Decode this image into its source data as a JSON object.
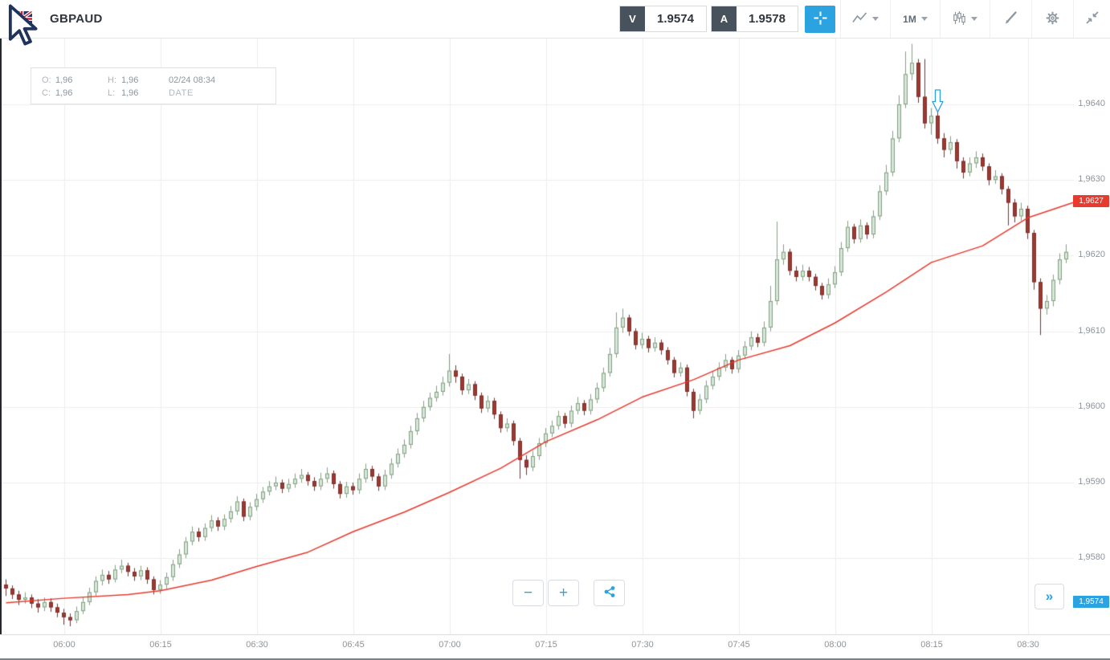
{
  "toolbar": {
    "symbol": "GBPAUD",
    "sell_label": "V",
    "sell_price": "1.9574",
    "buy_label": "A",
    "buy_price": "1.9578",
    "interval": "1M"
  },
  "info_box": {
    "open_label": "O:",
    "open_value": "1,96",
    "high_label": "H:",
    "high_value": "1,96",
    "close_label": "C:",
    "close_value": "1,96",
    "low_label": "L:",
    "low_value": "1,96",
    "datetime": "02/24 08:34",
    "date_caption": "DATE"
  },
  "controls": {
    "zoom_out": "−",
    "zoom_in": "+",
    "expand": "»"
  },
  "chart_data": {
    "type": "candlestick",
    "symbol": "GBPAUD",
    "interval": "1m",
    "start_time": "05:51",
    "x_ticks": [
      "06:00",
      "06:15",
      "06:30",
      "06:45",
      "07:00",
      "07:15",
      "07:30",
      "07:45",
      "08:00",
      "08:15",
      "08:30"
    ],
    "y_ticks": [
      1.964,
      1.963,
      1.962,
      1.961,
      1.96,
      1.959,
      1.958
    ],
    "y_tick_labels": [
      "1,9640",
      "1,9630",
      "1,9620",
      "1,9610",
      "1,9600",
      "1,9590",
      "1,9580"
    ],
    "ylim": [
      1.957,
      1.965
    ],
    "grid": true,
    "colors": {
      "up_fill": "#d7e7d7",
      "up_border": "#7aa47a",
      "down_fill": "#9c3a32",
      "down_border": "#872d26",
      "grid": "#ececec",
      "axis_line": "#d8d8d8"
    },
    "price_line_labels": [
      {
        "text": "1,9627",
        "price": 1.96272,
        "color": "#e83b30"
      },
      {
        "text": "1,9574",
        "price": 1.95742,
        "color": "#2ba3e0"
      }
    ],
    "ma_line": {
      "name": "moving-average",
      "color": "#e8382c",
      "points": [
        [
          0,
          1.95741
        ],
        [
          9,
          1.95747
        ],
        [
          19,
          1.95752
        ],
        [
          24,
          1.95757
        ],
        [
          32,
          1.95771
        ],
        [
          39,
          1.95789
        ],
        [
          47,
          1.95808
        ],
        [
          54,
          1.95835
        ],
        [
          62,
          1.95861
        ],
        [
          69,
          1.95887
        ],
        [
          77,
          1.95919
        ],
        [
          84,
          1.95954
        ],
        [
          92,
          1.95983
        ],
        [
          99,
          1.96013
        ],
        [
          107,
          1.96036
        ],
        [
          114,
          1.96062
        ],
        [
          122,
          1.96081
        ],
        [
          129,
          1.96111
        ],
        [
          137,
          1.96152
        ],
        [
          144,
          1.96191
        ],
        [
          152,
          1.96213
        ],
        [
          159,
          1.9625
        ],
        [
          166,
          1.9627
        ]
      ]
    },
    "annotation": {
      "type": "down-arrow",
      "time_index": 145,
      "price": 1.9642,
      "color": "#2b9fe0"
    },
    "candles": [
      [
        1.95765,
        1.95772,
        1.9575,
        1.9576
      ],
      [
        1.9576,
        1.95764,
        1.95746,
        1.95752
      ],
      [
        1.95752,
        1.95757,
        1.95738,
        1.95745
      ],
      [
        1.95745,
        1.95755,
        1.9574,
        1.95748
      ],
      [
        1.95748,
        1.95752,
        1.95734,
        1.9574
      ],
      [
        1.9574,
        1.95746,
        1.95728,
        1.95735
      ],
      [
        1.95735,
        1.95748,
        1.9573,
        1.95742
      ],
      [
        1.95742,
        1.95747,
        1.95729,
        1.95735
      ],
      [
        1.95735,
        1.9574,
        1.95722,
        1.95728
      ],
      [
        1.95728,
        1.95733,
        1.95712,
        1.95722
      ],
      [
        1.95722,
        1.95727,
        1.9571,
        1.95718
      ],
      [
        1.95718,
        1.95736,
        1.95714,
        1.9573
      ],
      [
        1.9573,
        1.95748,
        1.95726,
        1.95742
      ],
      [
        1.95742,
        1.95761,
        1.95738,
        1.95755
      ],
      [
        1.95755,
        1.95776,
        1.9575,
        1.9577
      ],
      [
        1.9577,
        1.95785,
        1.95764,
        1.95778
      ],
      [
        1.95778,
        1.95783,
        1.95766,
        1.95772
      ],
      [
        1.95772,
        1.95791,
        1.95768,
        1.95785
      ],
      [
        1.95785,
        1.95798,
        1.9578,
        1.9579
      ],
      [
        1.9579,
        1.95794,
        1.95776,
        1.95782
      ],
      [
        1.95782,
        1.95787,
        1.9577,
        1.95776
      ],
      [
        1.95776,
        1.9579,
        1.95771,
        1.95784
      ],
      [
        1.95784,
        1.95788,
        1.95766,
        1.95772
      ],
      [
        1.95772,
        1.95776,
        1.95752,
        1.95758
      ],
      [
        1.95758,
        1.95771,
        1.95753,
        1.95765
      ],
      [
        1.95765,
        1.95781,
        1.9576,
        1.95775
      ],
      [
        1.95775,
        1.95798,
        1.9577,
        1.95792
      ],
      [
        1.95792,
        1.95812,
        1.95787,
        1.95805
      ],
      [
        1.95805,
        1.95828,
        1.958,
        1.95822
      ],
      [
        1.95822,
        1.95842,
        1.95817,
        1.95835
      ],
      [
        1.95835,
        1.9584,
        1.95822,
        1.95828
      ],
      [
        1.95828,
        1.95846,
        1.95823,
        1.9584
      ],
      [
        1.9584,
        1.95857,
        1.95835,
        1.9585
      ],
      [
        1.9585,
        1.95854,
        1.95836,
        1.95842
      ],
      [
        1.95842,
        1.95858,
        1.95837,
        1.95852
      ],
      [
        1.95852,
        1.95869,
        1.95847,
        1.95862
      ],
      [
        1.95862,
        1.95882,
        1.95857,
        1.95875
      ],
      [
        1.95875,
        1.95879,
        1.95849,
        1.95855
      ],
      [
        1.95855,
        1.95874,
        1.9585,
        1.95868
      ],
      [
        1.95868,
        1.95885,
        1.95863,
        1.95878
      ],
      [
        1.95878,
        1.95894,
        1.95873,
        1.95888
      ],
      [
        1.95888,
        1.95902,
        1.95883,
        1.95895
      ],
      [
        1.95895,
        1.95908,
        1.9589,
        1.959
      ],
      [
        1.959,
        1.95904,
        1.95886,
        1.95892
      ],
      [
        1.95892,
        1.95905,
        1.95887,
        1.95898
      ],
      [
        1.95898,
        1.95912,
        1.95893,
        1.95905
      ],
      [
        1.95905,
        1.95918,
        1.959,
        1.9591
      ],
      [
        1.9591,
        1.95914,
        1.95896,
        1.95902
      ],
      [
        1.95902,
        1.95907,
        1.95889,
        1.95895
      ],
      [
        1.95895,
        1.95913,
        1.9589,
        1.95905
      ],
      [
        1.95905,
        1.9592,
        1.959,
        1.95912
      ],
      [
        1.95912,
        1.95916,
        1.95892,
        1.95898
      ],
      [
        1.95898,
        1.95902,
        1.95879,
        1.95885
      ],
      [
        1.95885,
        1.95901,
        1.9588,
        1.95895
      ],
      [
        1.95895,
        1.959,
        1.95884,
        1.9589
      ],
      [
        1.9589,
        1.95912,
        1.95885,
        1.95905
      ],
      [
        1.95905,
        1.95925,
        1.959,
        1.95918
      ],
      [
        1.95918,
        1.95922,
        1.95902,
        1.95908
      ],
      [
        1.95908,
        1.95912,
        1.95889,
        1.95895
      ],
      [
        1.95895,
        1.95917,
        1.9589,
        1.9591
      ],
      [
        1.9591,
        1.95932,
        1.95905,
        1.95925
      ],
      [
        1.95925,
        1.95945,
        1.9592,
        1.95938
      ],
      [
        1.95938,
        1.95957,
        1.95933,
        1.9595
      ],
      [
        1.9595,
        1.95975,
        1.95945,
        1.95968
      ],
      [
        1.95968,
        1.95992,
        1.95963,
        1.95985
      ],
      [
        1.95985,
        1.96008,
        1.9598,
        1.96
      ],
      [
        1.96,
        1.96019,
        1.95995,
        1.96012
      ],
      [
        1.96012,
        1.96028,
        1.96007,
        1.9602
      ],
      [
        1.9602,
        1.9604,
        1.96015,
        1.96032
      ],
      [
        1.96032,
        1.9607,
        1.96027,
        1.96048
      ],
      [
        1.96048,
        1.96055,
        1.96032,
        1.9604
      ],
      [
        1.9604,
        1.96044,
        1.96016,
        1.96022
      ],
      [
        1.96022,
        1.96037,
        1.96017,
        1.9603
      ],
      [
        1.9603,
        1.96034,
        1.96009,
        1.96015
      ],
      [
        1.96015,
        1.96019,
        1.95992,
        1.95998
      ],
      [
        1.95998,
        1.96015,
        1.95993,
        1.96008
      ],
      [
        1.96008,
        1.96012,
        1.95984,
        1.9599
      ],
      [
        1.9599,
        1.95994,
        1.95966,
        1.95972
      ],
      [
        1.95972,
        1.95985,
        1.95967,
        1.95978
      ],
      [
        1.95978,
        1.95982,
        1.95949,
        1.95955
      ],
      [
        1.95955,
        1.95959,
        1.95905,
        1.9593
      ],
      [
        1.9593,
        1.95936,
        1.9591,
        1.9592
      ],
      [
        1.9592,
        1.95942,
        1.95915,
        1.95935
      ],
      [
        1.95935,
        1.95959,
        1.9593,
        1.95952
      ],
      [
        1.95952,
        1.95972,
        1.95947,
        1.95965
      ],
      [
        1.95965,
        1.95982,
        1.9596,
        1.95975
      ],
      [
        1.95975,
        1.95995,
        1.9597,
        1.95988
      ],
      [
        1.95988,
        1.95992,
        1.95972,
        1.95978
      ],
      [
        1.95978,
        1.96002,
        1.95973,
        1.95995
      ],
      [
        1.95995,
        1.96013,
        1.9599,
        1.96005
      ],
      [
        1.96005,
        1.96009,
        1.95989,
        1.95995
      ],
      [
        1.95995,
        1.96017,
        1.9599,
        1.9601
      ],
      [
        1.9601,
        1.96032,
        1.96005,
        1.96025
      ],
      [
        1.96025,
        1.96052,
        1.9602,
        1.96045
      ],
      [
        1.96045,
        1.96078,
        1.9604,
        1.9607
      ],
      [
        1.9607,
        1.96125,
        1.96065,
        1.96105
      ],
      [
        1.96105,
        1.9613,
        1.96098,
        1.96118
      ],
      [
        1.96118,
        1.96122,
        1.96094,
        1.961
      ],
      [
        1.961,
        1.96104,
        1.96076,
        1.96082
      ],
      [
        1.96082,
        1.96098,
        1.96077,
        1.9609
      ],
      [
        1.9609,
        1.96094,
        1.96072,
        1.96078
      ],
      [
        1.96078,
        1.96092,
        1.96073,
        1.96085
      ],
      [
        1.96085,
        1.96089,
        1.96069,
        1.96075
      ],
      [
        1.96075,
        1.96079,
        1.96056,
        1.96062
      ],
      [
        1.96062,
        1.96066,
        1.96039,
        1.96045
      ],
      [
        1.96045,
        1.96059,
        1.9604,
        1.96052
      ],
      [
        1.96052,
        1.96056,
        1.96014,
        1.9602
      ],
      [
        1.9602,
        1.96024,
        1.95985,
        1.95995
      ],
      [
        1.95995,
        1.96017,
        1.9599,
        1.9601
      ],
      [
        1.9601,
        1.96035,
        1.96005,
        1.96028
      ],
      [
        1.96028,
        1.96047,
        1.96023,
        1.9604
      ],
      [
        1.9604,
        1.96059,
        1.96035,
        1.96052
      ],
      [
        1.96052,
        1.9607,
        1.96047,
        1.96062
      ],
      [
        1.96062,
        1.96066,
        1.96044,
        1.9605
      ],
      [
        1.9605,
        1.96075,
        1.96045,
        1.96068
      ],
      [
        1.96068,
        1.96087,
        1.96063,
        1.9608
      ],
      [
        1.9608,
        1.961,
        1.96075,
        1.96092
      ],
      [
        1.96092,
        1.96097,
        1.96079,
        1.96085
      ],
      [
        1.96085,
        1.96113,
        1.9608,
        1.96105
      ],
      [
        1.96105,
        1.9616,
        1.961,
        1.9614
      ],
      [
        1.9614,
        1.96245,
        1.96135,
        1.96195
      ],
      [
        1.96195,
        1.96215,
        1.96188,
        1.96205
      ],
      [
        1.96205,
        1.96209,
        1.96174,
        1.9618
      ],
      [
        1.9618,
        1.96186,
        1.96166,
        1.96172
      ],
      [
        1.96172,
        1.96188,
        1.96167,
        1.9618
      ],
      [
        1.9618,
        1.96185,
        1.96166,
        1.96172
      ],
      [
        1.96172,
        1.96176,
        1.96154,
        1.9616
      ],
      [
        1.9616,
        1.96164,
        1.96142,
        1.96148
      ],
      [
        1.96148,
        1.9617,
        1.96143,
        1.96162
      ],
      [
        1.96162,
        1.96186,
        1.96157,
        1.96178
      ],
      [
        1.96178,
        1.96218,
        1.96173,
        1.9621
      ],
      [
        1.9621,
        1.96246,
        1.96205,
        1.96238
      ],
      [
        1.96238,
        1.96242,
        1.96216,
        1.96222
      ],
      [
        1.96222,
        1.96248,
        1.96217,
        1.9624
      ],
      [
        1.9624,
        1.96244,
        1.96222,
        1.96228
      ],
      [
        1.96228,
        1.9626,
        1.96223,
        1.96252
      ],
      [
        1.96252,
        1.96293,
        1.96247,
        1.96285
      ],
      [
        1.96285,
        1.9632,
        1.9628,
        1.9631
      ],
      [
        1.9631,
        1.96365,
        1.96305,
        1.96355
      ],
      [
        1.96355,
        1.96412,
        1.9635,
        1.964
      ],
      [
        1.964,
        1.9647,
        1.96395,
        1.9644
      ],
      [
        1.9644,
        1.9648,
        1.96432,
        1.96455
      ],
      [
        1.96455,
        1.9646,
        1.96402,
        1.9641
      ],
      [
        1.9641,
        1.9646,
        1.96368,
        1.96375
      ],
      [
        1.96375,
        1.96395,
        1.9636,
        1.96385
      ],
      [
        1.96385,
        1.9639,
        1.96348,
        1.96355
      ],
      [
        1.96355,
        1.96362,
        1.9633,
        1.9634
      ],
      [
        1.9634,
        1.96358,
        1.96334,
        1.9635
      ],
      [
        1.9635,
        1.96354,
        1.96315,
        1.96325
      ],
      [
        1.96325,
        1.9633,
        1.96302,
        1.9631
      ],
      [
        1.9631,
        1.9633,
        1.96305,
        1.96322
      ],
      [
        1.96322,
        1.96338,
        1.96316,
        1.9633
      ],
      [
        1.9633,
        1.96335,
        1.96312,
        1.96318
      ],
      [
        1.96318,
        1.96322,
        1.96293,
        1.963
      ],
      [
        1.963,
        1.96313,
        1.96295,
        1.96305
      ],
      [
        1.96305,
        1.96309,
        1.96281,
        1.96288
      ],
      [
        1.96288,
        1.96292,
        1.9624,
        1.9627
      ],
      [
        1.9627,
        1.96275,
        1.96244,
        1.96252
      ],
      [
        1.96252,
        1.9627,
        1.96246,
        1.96262
      ],
      [
        1.96262,
        1.96266,
        1.96222,
        1.9623
      ],
      [
        1.9623,
        1.96234,
        1.96155,
        1.96165
      ],
      [
        1.96165,
        1.9617,
        1.96095,
        1.9613
      ],
      [
        1.9613,
        1.96148,
        1.96122,
        1.9614
      ],
      [
        1.9614,
        1.96175,
        1.96133,
        1.96168
      ],
      [
        1.96168,
        1.96203,
        1.96162,
        1.96195
      ],
      [
        1.96195,
        1.96215,
        1.9619,
        1.96205
      ]
    ]
  }
}
